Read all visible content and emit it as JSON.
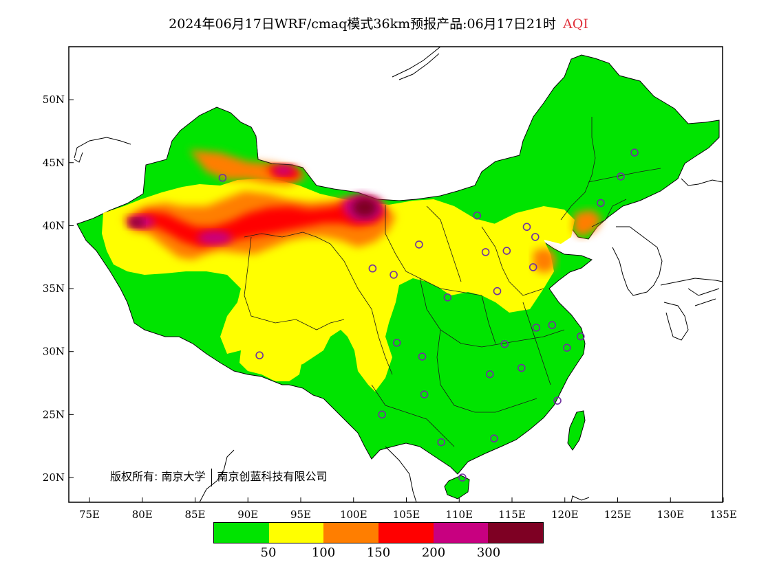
{
  "title": {
    "main": "2024年06月17日WRF/cmaq模式36km预报产品:06月17日21时",
    "variable": "AQI"
  },
  "axes": {
    "lat_ticks": [
      "50N",
      "45N",
      "40N",
      "35N",
      "30N",
      "25N",
      "20N"
    ],
    "lon_ticks": [
      "75E",
      "80E",
      "85E",
      "90E",
      "95E",
      "100E",
      "105E",
      "110E",
      "115E",
      "120E",
      "125E",
      "130E",
      "135E"
    ]
  },
  "copyright": {
    "prefix": "版权所有:",
    "org1": "南京大学",
    "org2": "南京创蓝科技有限公司"
  },
  "legend": {
    "colors": [
      "#00e400",
      "#ffff00",
      "#ff7e00",
      "#ff0000",
      "#c80080",
      "#7e0023"
    ],
    "labels": [
      "50",
      "100",
      "150",
      "200",
      "300"
    ]
  },
  "colors": {
    "good": "#00e400",
    "moderate": "#ffff00",
    "usg": "#ff7e00",
    "unhealthy": "#ff0000",
    "very_unhealthy": "#c80080",
    "hazardous": "#7e0023",
    "station_marker": "#7030a0"
  },
  "stations": [
    {
      "lon": 87.6,
      "lat": 43.8
    },
    {
      "lon": 126.6,
      "lat": 45.8
    },
    {
      "lon": 125.3,
      "lat": 43.9
    },
    {
      "lon": 123.4,
      "lat": 41.8
    },
    {
      "lon": 116.4,
      "lat": 39.9
    },
    {
      "lon": 117.2,
      "lat": 39.1
    },
    {
      "lon": 111.7,
      "lat": 40.8
    },
    {
      "lon": 114.5,
      "lat": 38.0
    },
    {
      "lon": 112.5,
      "lat": 37.9
    },
    {
      "lon": 106.2,
      "lat": 38.5
    },
    {
      "lon": 103.8,
      "lat": 36.1
    },
    {
      "lon": 101.8,
      "lat": 36.6
    },
    {
      "lon": 108.9,
      "lat": 34.3
    },
    {
      "lon": 113.6,
      "lat": 34.8
    },
    {
      "lon": 117.0,
      "lat": 36.7
    },
    {
      "lon": 117.3,
      "lat": 31.9
    },
    {
      "lon": 118.8,
      "lat": 32.1
    },
    {
      "lon": 121.5,
      "lat": 31.2
    },
    {
      "lon": 120.2,
      "lat": 30.3
    },
    {
      "lon": 114.3,
      "lat": 30.6
    },
    {
      "lon": 112.9,
      "lat": 28.2
    },
    {
      "lon": 115.9,
      "lat": 28.7
    },
    {
      "lon": 119.3,
      "lat": 26.1
    },
    {
      "lon": 106.5,
      "lat": 29.6
    },
    {
      "lon": 104.1,
      "lat": 30.7
    },
    {
      "lon": 106.7,
      "lat": 26.6
    },
    {
      "lon": 102.7,
      "lat": 25.0
    },
    {
      "lon": 108.3,
      "lat": 22.8
    },
    {
      "lon": 113.3,
      "lat": 23.1
    },
    {
      "lon": 110.3,
      "lat": 20.0
    },
    {
      "lon": 91.1,
      "lat": 29.7
    }
  ]
}
